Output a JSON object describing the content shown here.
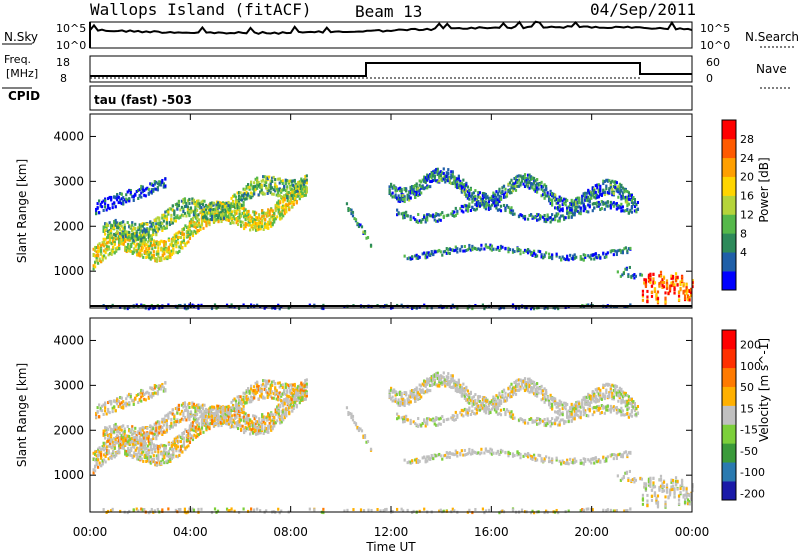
{
  "header": {
    "station": "Wallops Island (fitACF)",
    "beam": "Beam 13",
    "date": "04/Sep/2011"
  },
  "noise_panel": {
    "left_label": "N.Sky",
    "left_ticks": [
      "10^5",
      "10^0"
    ],
    "right_ticks": [
      "10^5",
      "10^0"
    ],
    "right_label": "N.Search"
  },
  "freq_panel": {
    "left_label_line1": "Freq.",
    "left_label_line2": "[MHz]",
    "left_ticks": [
      "18",
      "8"
    ],
    "right_ticks": [
      "60",
      "0"
    ],
    "right_label": "Nave",
    "cpid_label": "CPID",
    "program": "tau (fast) -503"
  },
  "colors": {
    "power": [
      "#0000ff",
      "#1f5fa8",
      "#2d8a5a",
      "#55b84a",
      "#b5d43a",
      "#ffd500",
      "#ff9f00",
      "#ff5a00",
      "#ff0000"
    ],
    "velocity": [
      "#1a1aa8",
      "#2a7ab0",
      "#3a9a3a",
      "#7ccf3a",
      "#c0c0c0",
      "#ffb000",
      "#ff7a00",
      "#ff3000",
      "#ff0000"
    ]
  },
  "chart_data": [
    {
      "type": "heatmap",
      "name": "power",
      "xlabel": "Time UT",
      "ylabel": "Slant Range [km]",
      "x_ticks": [
        "00:00",
        "04:00",
        "08:00",
        "12:00",
        "16:00",
        "20:00",
        "00:00"
      ],
      "xlim": [
        0,
        24
      ],
      "y_ticks": [
        "1000",
        "2000",
        "3000",
        "4000"
      ],
      "ylim": [
        180,
        4500
      ],
      "colorbar_label": "Power [dB]",
      "colorbar_ticks": [
        "28",
        "24",
        "20",
        "16",
        "12",
        "8",
        "4"
      ],
      "colorbar_range": [
        0,
        30
      ]
    },
    {
      "type": "heatmap",
      "name": "velocity",
      "xlabel": "Time UT",
      "ylabel": "Slant Range [km]",
      "x_ticks": [
        "00:00",
        "04:00",
        "08:00",
        "12:00",
        "16:00",
        "20:00",
        "00:00"
      ],
      "xlim": [
        0,
        24
      ],
      "y_ticks": [
        "1000",
        "2000",
        "3000",
        "4000"
      ],
      "ylim": [
        180,
        4500
      ],
      "colorbar_label": "Velocity [m s^-1]",
      "colorbar_ticks": [
        "200",
        "100",
        "50",
        "15",
        "-15",
        "-50",
        "-100",
        "-200"
      ]
    }
  ]
}
